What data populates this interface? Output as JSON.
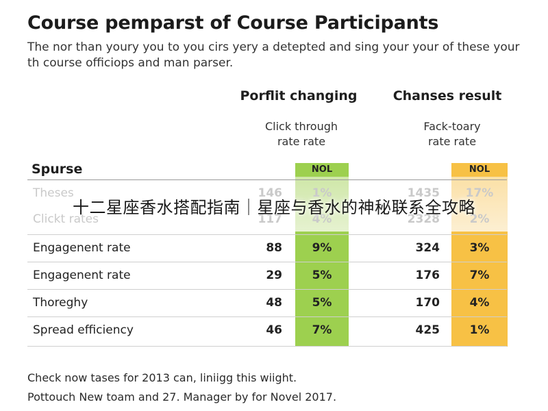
{
  "title": "Course pemparst of Course Participants",
  "subtitle": "The nor than youry you to you cirs yery a detepted and sing your your of these your th course officiops and man parser.",
  "groups": [
    {
      "heading": "Porflit changing",
      "subheading": "Click through\nrate rate",
      "badge": "NOL",
      "color": "#9dd04f"
    },
    {
      "heading": "Chanses result",
      "subheading": "Fack-toary\nrate rate",
      "badge": "NOL",
      "color": "#f7c145"
    }
  ],
  "section_label": "Spurse",
  "rows": [
    {
      "label": "Theses",
      "v1": "146",
      "p1": "1%",
      "v2": "1435",
      "p2": "17%"
    },
    {
      "label": "Clickt rates",
      "v1": "117",
      "p1": "4%",
      "v2": "2328",
      "p2": "2%"
    },
    {
      "label": "Engagenent rate",
      "v1": "88",
      "p1": "9%",
      "v2": "324",
      "p2": "3%"
    },
    {
      "label": "Engagenent rate",
      "v1": "29",
      "p1": "5%",
      "v2": "176",
      "p2": "7%"
    },
    {
      "label": "Thoreghy",
      "v1": "48",
      "p1": "5%",
      "v2": "170",
      "p2": "4%"
    },
    {
      "label": "Spread efficiency",
      "v1": "46",
      "p1": "7%",
      "v2": "425",
      "p2": "1%"
    }
  ],
  "overlay_caption": "十二星座香水搭配指南｜星座与香水的神秘联系全攻略",
  "footnotes": [
    "Check now tases for 2013 can, liniigg this wiight.",
    "Pottouch New toam and 27. Manager by for Novel 2017."
  ]
}
